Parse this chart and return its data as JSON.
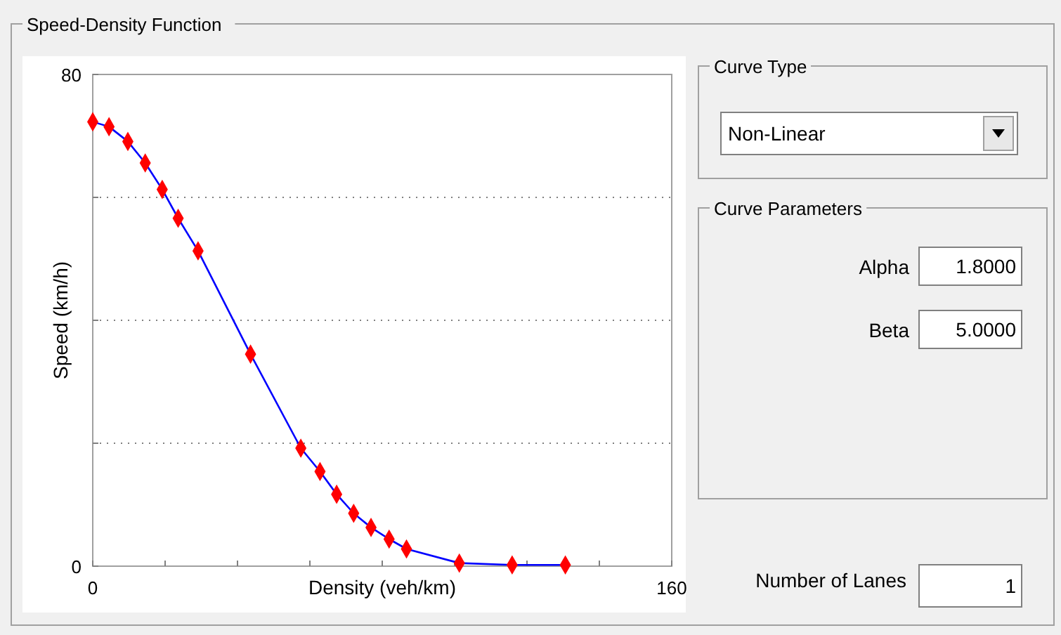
{
  "chart_data": [
    {
      "type": "line",
      "title": "Speed-Density Function",
      "xlabel": "Density (veh/km)",
      "ylabel": "Speed (km/h)",
      "x": [
        0,
        4.5,
        9.7,
        14.5,
        19.2,
        23.6,
        29.1,
        43.6,
        57.5,
        62.8,
        67.4,
        72.1,
        76.9,
        81.9,
        86.7,
        101.3,
        115.9,
        130.6
      ],
      "series": [
        {
          "type": "line",
          "color": "#0000ff",
          "marker": "none",
          "values": [
            72.3,
            71.5,
            69.1,
            65.6,
            61.3,
            56.6,
            51.3,
            34.5,
            19.2,
            15.4,
            11.7,
            8.6,
            6.3,
            4.4,
            2.8,
            0.5,
            0.2,
            0.2
          ]
        },
        {
          "type": "scatter",
          "color": "#ff0000",
          "marker": "diamond",
          "values": [
            72.3,
            71.5,
            69.1,
            65.6,
            61.3,
            56.6,
            51.3,
            34.5,
            19.2,
            15.4,
            11.7,
            8.6,
            6.3,
            4.4,
            2.8,
            0.5,
            0.2,
            0.2
          ]
        }
      ],
      "xlim": [
        0,
        160
      ],
      "xticks": [
        0,
        {
          "value": 20,
          "label": null
        },
        {
          "value": 40,
          "label": null
        },
        {
          "value": 60,
          "label": null
        },
        {
          "value": 80,
          "label": null
        },
        {
          "value": 100,
          "label": null
        },
        {
          "value": 120,
          "label": null
        },
        {
          "value": 140,
          "label": null
        },
        160
      ],
      "ylim": [
        0,
        80
      ],
      "yticks": [
        0,
        {
          "value": 20,
          "label": null
        },
        {
          "value": 40,
          "label": null
        },
        {
          "value": 60,
          "label": null
        },
        80
      ],
      "grid": "y"
    },
    {
      "type": "other",
      "annotations": [
        "Curve Type",
        "Non-Linear",
        "Curve Parameters",
        "Alpha",
        "1.8000",
        "Beta",
        "5.0000",
        "Number of Lanes",
        "1"
      ]
    }
  ]
}
